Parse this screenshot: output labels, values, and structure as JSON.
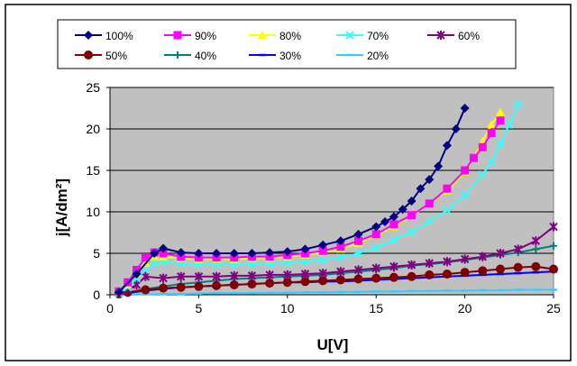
{
  "chart_data": {
    "type": "line",
    "xlabel": "U[V]",
    "ylabel": "j[A/dm²]",
    "xlim": [
      0,
      25
    ],
    "ylim": [
      0,
      25
    ],
    "x_ticks": [
      0,
      5,
      10,
      15,
      20,
      25
    ],
    "y_ticks": [
      0,
      5,
      10,
      15,
      20,
      25
    ],
    "grid": "horizontal",
    "legend_position": "top",
    "plot_background": "#c0c0c0",
    "series": [
      {
        "name": "100%",
        "color": "#000080",
        "marker": "diamond",
        "x": [
          0.5,
          1.5,
          2.5,
          3,
          4,
          5,
          6,
          7,
          8,
          9,
          10,
          11,
          12,
          13,
          14,
          15,
          15.5,
          16,
          16.5,
          17,
          17.5,
          18,
          18.5,
          19,
          19.5,
          20
        ],
        "y": [
          0.3,
          2.5,
          5,
          5.6,
          5.1,
          5,
          5,
          5,
          5,
          5.1,
          5.2,
          5.5,
          6,
          6.5,
          7.3,
          8.2,
          8.8,
          9.4,
          10.3,
          11.3,
          12.8,
          13.9,
          15.5,
          18,
          20,
          22.5
        ]
      },
      {
        "name": "90%",
        "color": "#ff00ff",
        "marker": "square",
        "x": [
          0.5,
          1,
          1.5,
          2,
          2.5,
          3,
          4,
          5,
          6,
          7,
          8,
          9,
          10,
          11,
          12,
          13,
          14,
          15,
          16,
          17,
          18,
          19,
          20,
          20.5,
          21,
          21.5,
          22
        ],
        "y": [
          0.4,
          1.5,
          3,
          4.5,
          5.1,
          5,
          4.6,
          4.5,
          4.5,
          4.5,
          4.6,
          4.6,
          4.8,
          5,
          5.3,
          5.8,
          6.5,
          7.3,
          8.5,
          9.6,
          11,
          12.8,
          15,
          16.5,
          17.8,
          19.5,
          21
        ]
      },
      {
        "name": "80%",
        "color": "#ffff00",
        "marker": "triangle",
        "x": [
          0.5,
          1,
          1.5,
          2,
          2.5,
          3,
          4,
          5,
          6,
          7,
          8,
          9,
          10,
          11,
          12,
          13,
          14,
          15,
          16,
          17,
          18,
          19,
          20,
          20.5,
          21,
          21.5,
          22
        ],
        "y": [
          0.3,
          1.2,
          2.6,
          3.8,
          4.6,
          4.6,
          4.4,
          4.3,
          4.3,
          4.3,
          4.4,
          4.4,
          4.6,
          4.8,
          5.1,
          5.5,
          6.2,
          7.2,
          8.2,
          9.5,
          11,
          12.5,
          14.8,
          16.5,
          18.5,
          20.5,
          22
        ]
      },
      {
        "name": "70%",
        "color": "#33ffff",
        "marker": "x",
        "x": [
          0.5,
          1,
          1.5,
          2,
          2.5,
          3,
          4,
          5,
          6,
          7,
          8,
          9,
          10,
          11,
          12,
          13,
          14,
          15,
          16,
          17,
          18,
          19,
          20,
          21,
          21.5,
          22,
          22.5,
          23
        ],
        "y": [
          0.2,
          0.9,
          2,
          3,
          3.8,
          4,
          3.8,
          3.7,
          3.7,
          3.7,
          3.7,
          3.8,
          3.9,
          4,
          4.2,
          4.5,
          5,
          5.7,
          6.6,
          7.6,
          8.8,
          10.2,
          12,
          14.5,
          16,
          18.2,
          20.5,
          23
        ]
      },
      {
        "name": "60%",
        "color": "#800080",
        "marker": "star",
        "x": [
          0.5,
          1,
          1.5,
          2,
          3,
          4,
          5,
          6,
          7,
          8,
          9,
          10,
          11,
          12,
          13,
          14,
          15,
          16,
          17,
          18,
          19,
          20,
          21,
          22,
          23,
          24,
          25
        ],
        "y": [
          0.2,
          0.6,
          1.2,
          2.2,
          2,
          2.2,
          2.2,
          2.2,
          2.3,
          2.3,
          2.4,
          2.4,
          2.5,
          2.6,
          2.8,
          3,
          3.2,
          3.4,
          3.6,
          3.8,
          4,
          4.3,
          4.6,
          5,
          5.5,
          6.5,
          8.2
        ]
      },
      {
        "name": "50%",
        "color": "#800000",
        "marker": "circle",
        "x": [
          0.5,
          1,
          2,
          3,
          4,
          5,
          6,
          7,
          8,
          9,
          10,
          11,
          12,
          13,
          14,
          15,
          16,
          17,
          18,
          19,
          20,
          21,
          22,
          23,
          24,
          25
        ],
        "y": [
          0.1,
          0.3,
          0.6,
          0.8,
          0.9,
          1,
          1.1,
          1.2,
          1.3,
          1.4,
          1.5,
          1.6,
          1.7,
          1.8,
          1.9,
          2,
          2.1,
          2.2,
          2.4,
          2.5,
          2.7,
          2.9,
          3.1,
          3.3,
          3.4,
          3.1
        ]
      },
      {
        "name": "40%",
        "color": "#008080",
        "marker": "plus",
        "x": [
          0.5,
          1,
          2,
          3,
          4,
          5,
          6,
          7,
          8,
          9,
          10,
          11,
          12,
          13,
          14,
          15,
          16,
          17,
          18,
          19,
          20,
          21,
          22,
          23,
          24,
          25
        ],
        "y": [
          0.1,
          0.3,
          0.7,
          1,
          1.3,
          1.5,
          1.7,
          1.9,
          2,
          2.1,
          2.2,
          2.3,
          2.4,
          2.6,
          2.8,
          3,
          3.2,
          3.5,
          3.7,
          3.9,
          4.2,
          4.5,
          4.8,
          5.1,
          5.5,
          5.9
        ]
      },
      {
        "name": "30%",
        "color": "#0000ff",
        "marker": "dash",
        "x": [
          0.5,
          1,
          2,
          3,
          4,
          5,
          6,
          7,
          8,
          9,
          10,
          11,
          12,
          13,
          14,
          15,
          16,
          17,
          18,
          19,
          20,
          21,
          22,
          23,
          24,
          25
        ],
        "y": [
          0,
          0.2,
          0.5,
          0.7,
          0.9,
          1,
          1.1,
          1.2,
          1.3,
          1.4,
          1.5,
          1.5,
          1.6,
          1.6,
          1.7,
          1.8,
          1.9,
          2,
          2.1,
          2.2,
          2.3,
          2.4,
          2.5,
          2.6,
          2.7,
          2.8
        ]
      },
      {
        "name": "20%",
        "color": "#33ccff",
        "marker": "dash",
        "x": [
          0.5,
          1,
          2,
          3,
          4,
          5,
          6,
          7,
          8,
          9,
          10,
          11,
          12,
          13,
          14,
          15,
          16,
          17,
          18,
          19,
          20,
          21,
          22,
          23,
          24,
          25
        ],
        "y": [
          0,
          0,
          0.05,
          0.1,
          0.1,
          0.15,
          0.2,
          0.2,
          0.2,
          0.25,
          0.25,
          0.3,
          0.3,
          0.35,
          0.35,
          0.4,
          0.4,
          0.45,
          0.45,
          0.5,
          0.5,
          0.55,
          0.55,
          0.6,
          0.6,
          0.6
        ]
      }
    ]
  }
}
